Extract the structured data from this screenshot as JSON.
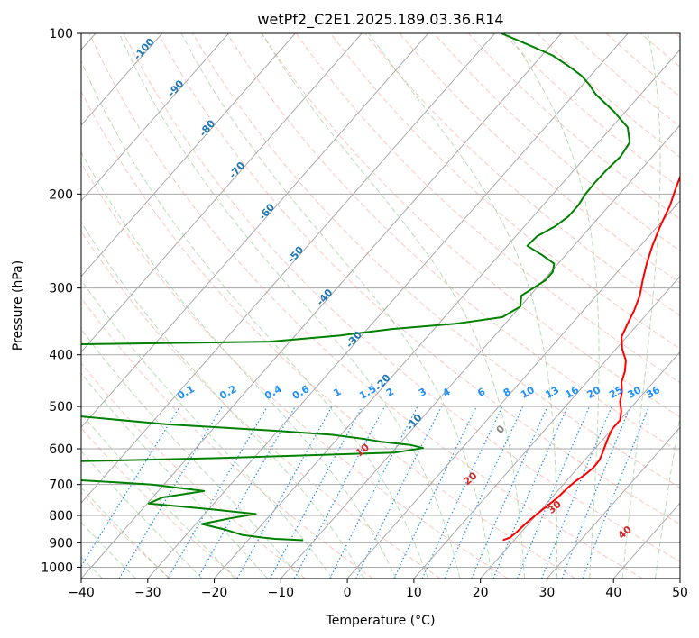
{
  "chart_data": {
    "type": "line",
    "title": "wetPf2_C2E1.2025.189.03.36.R14",
    "xlabel": "Temperature (°C)",
    "ylabel": "Pressure (hPa)",
    "xlim": [
      -40,
      50
    ],
    "ylim": [
      1050,
      100
    ],
    "y_scale": "log",
    "x_ticks": [
      -40,
      -30,
      -20,
      -10,
      0,
      10,
      20,
      30,
      40,
      50
    ],
    "y_ticks": [
      100,
      200,
      300,
      400,
      500,
      600,
      700,
      800,
      900,
      1000
    ],
    "grid": true,
    "series": [
      {
        "color": "#ff0000",
        "p": [
          890,
          880,
          860,
          830,
          800,
          770,
          740,
          710,
          690,
          670,
          650,
          630,
          610,
          590,
          570,
          550,
          530,
          510,
          490,
          470,
          450,
          430,
          410,
          390,
          370,
          350,
          330,
          310,
          290,
          270,
          250,
          230,
          210,
          195,
          180,
          165,
          150,
          140,
          132,
          126,
          122,
          117,
          112,
          106,
          100
        ],
        "t": [
          18.3,
          19.0,
          19.3,
          19.5,
          19.9,
          20.4,
          20.9,
          21.1,
          21.4,
          22.0,
          22.3,
          22.2,
          21.7,
          21.1,
          20.5,
          20.0,
          20.0,
          19.0,
          17.6,
          16.6,
          15.2,
          14.3,
          13.0,
          10.9,
          9.2,
          8.4,
          7.6,
          6.5,
          4.9,
          3.3,
          1.8,
          0.4,
          -0.9,
          -2.3,
          -3.7,
          -5.2,
          -7.6,
          -8.5,
          -8.3,
          -6.9,
          -4.9,
          -2.2,
          -0.8,
          -1.1,
          -1.5
        ]
      },
      {
        "color": "#008000",
        "p": [
          890,
          888,
          885,
          880,
          870,
          850,
          830,
          810,
          795,
          780,
          760,
          740,
          720,
          700,
          685,
          670,
          655,
          640,
          625,
          610,
          598,
          590,
          582,
          575,
          565,
          555,
          540,
          520,
          500,
          470,
          440,
          415,
          400,
          396,
          392,
          388,
          384,
          378,
          368,
          358,
          350,
          340,
          325,
          310,
          300,
          290,
          280,
          270,
          260,
          250,
          240,
          230,
          220,
          210,
          200,
          190,
          180,
          170,
          160,
          150,
          140,
          130,
          125,
          120,
          115,
          110,
          105,
          100
        ],
        "td": [
          -11.7,
          -13.5,
          -16.1,
          -18.1,
          -21.6,
          -24.9,
          -29.1,
          -25.6,
          -22.3,
          -29.1,
          -39.8,
          -38.5,
          -33.1,
          -41.8,
          -55.0,
          -76.0,
          -93.0,
          -72.0,
          -36.0,
          -9.6,
          -5.9,
          -8.2,
          -13.0,
          -15.9,
          -21.2,
          -30.4,
          -47.5,
          -63.0,
          -76.0,
          -87.0,
          -96.0,
          -104.0,
          -107.0,
          -95.0,
          -79.0,
          -89.0,
          -82.0,
          -43.0,
          -33.2,
          -26.3,
          -17.5,
          -11.3,
          -10.0,
          -11.3,
          -10.5,
          -9.7,
          -9.7,
          -10.6,
          -13.6,
          -17.0,
          -16.8,
          -15.4,
          -14.7,
          -14.7,
          -15.1,
          -15.2,
          -15.1,
          -14.8,
          -15.3,
          -17.6,
          -21.8,
          -26.8,
          -28.9,
          -31.4,
          -34.7,
          -38.4,
          -43.5,
          -49.0
        ]
      }
    ],
    "annotations": {
      "mixing_ratio": [
        "0.1",
        "0.2",
        "0.4",
        "0.6",
        "1",
        "1.5",
        "2",
        "3",
        "4",
        "6",
        "8",
        "10",
        "13",
        "16",
        "20",
        "25",
        "30",
        "36"
      ],
      "isotherm": [
        "-100",
        "-90",
        "-80",
        "-70",
        "-60",
        "-50",
        "-40",
        "-30",
        "-20",
        "-10"
      ],
      "isotherm_zero": "0",
      "moist_adiabat": [
        "10",
        "20",
        "30",
        "40"
      ]
    },
    "colors": {
      "temperature": "#ff0000",
      "dewpoint": "#008000",
      "mixing_ratio": "#1e90ff",
      "isotherm_label": "#1f77b4",
      "moist_adiabat": "#d62728",
      "dry_adiabat": "#fa8072",
      "moist_adiabat_line": "#7fbf7f",
      "grid": "#aaaaaa"
    }
  }
}
